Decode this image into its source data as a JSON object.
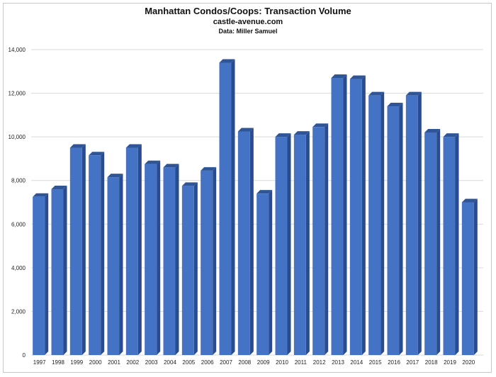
{
  "chart_data": {
    "type": "bar",
    "title": "Manhattan Condos/Coops: Transaction Volume",
    "subtitle": "castle-avenue.com",
    "source": "Data: Miller Samuel",
    "xlabel": "",
    "ylabel": "",
    "categories": [
      "1997",
      "1998",
      "1999",
      "2000",
      "2001",
      "2002",
      "2003",
      "2004",
      "2005",
      "2006",
      "2007",
      "2008",
      "2009",
      "2010",
      "2011",
      "2012",
      "2013",
      "2014",
      "2015",
      "2016",
      "2017",
      "2018",
      "2019",
      "2020"
    ],
    "values": [
      7250,
      7600,
      9500,
      9150,
      8150,
      9500,
      8750,
      8600,
      7750,
      8450,
      13400,
      10250,
      7400,
      10000,
      10100,
      10450,
      12700,
      12650,
      11900,
      11400,
      11900,
      10200,
      10000,
      7000
    ],
    "ylim": [
      0,
      14000
    ],
    "yticks": [
      0,
      2000,
      4000,
      6000,
      8000,
      10000,
      12000,
      14000
    ],
    "ytick_labels": [
      "0",
      "2,000",
      "4,000",
      "6,000",
      "8,000",
      "10,000",
      "12,000",
      "14,000"
    ],
    "grid": true,
    "legend": "none",
    "colors": {
      "front": "#4472C4",
      "side": "#2A4C8E",
      "top": "#2F5597",
      "grid": "#d9d9d9"
    }
  }
}
